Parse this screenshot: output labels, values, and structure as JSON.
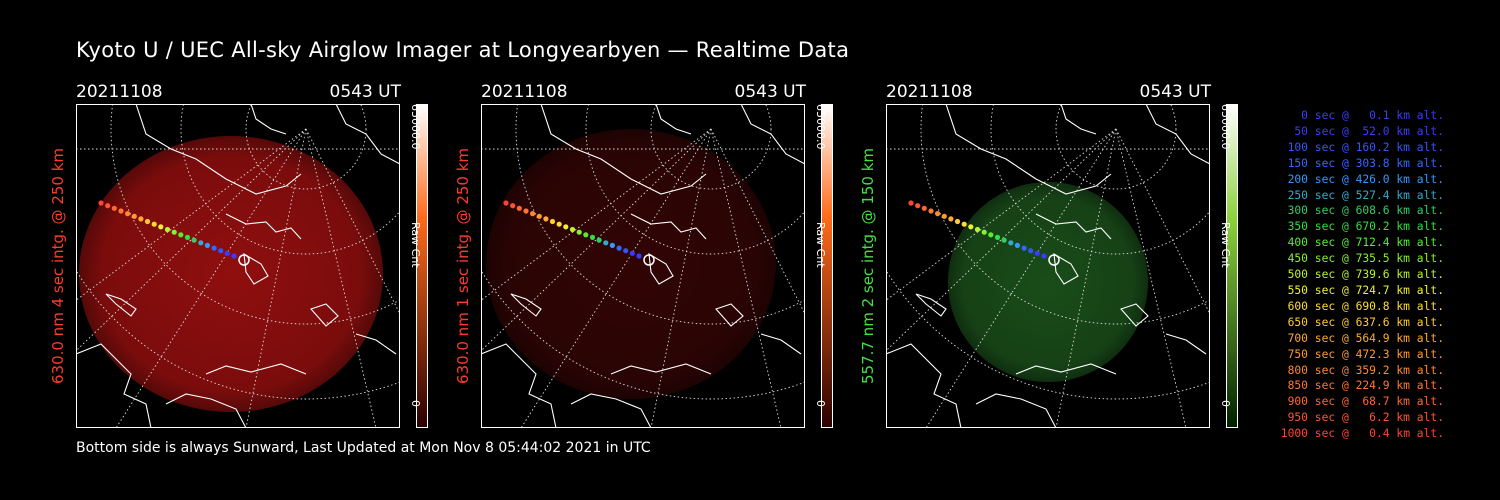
{
  "title": "Kyoto U / UEC All-sky Airglow Imager at Longyearbyen — Realtime Data",
  "footer": "Bottom side is always Sunward, Last Updated at Mon Nov  8 05:44:02 2021 in UTC",
  "panels": [
    {
      "date": "20211108",
      "time": "0543 UT",
      "side_label": "630.0 nm 4 sec intg. @ 250 km",
      "label_color": "#ff3b2a",
      "cbar_max": "65000.0",
      "cbar_unit": "Raw Cnt",
      "cbar_min": "0",
      "glow_color": "#a01010",
      "glow_level": 0.9,
      "bar_colors": [
        "#ffffff",
        "#ff6a1a",
        "#2a0000"
      ]
    },
    {
      "date": "20211108",
      "time": "0543 UT",
      "side_label": "630.0 nm 1 sec intg. @ 250 km",
      "label_color": "#ff3b2a",
      "cbar_max": "65000.0",
      "cbar_unit": "Raw Cnt",
      "cbar_min": "0",
      "glow_color": "#5a0808",
      "glow_level": 0.55,
      "bar_colors": [
        "#ffffff",
        "#ff6a1a",
        "#2a0000"
      ]
    },
    {
      "date": "20211108",
      "time": "0543 UT",
      "side_label": "557.7 nm 2 sec intg. @ 150 km",
      "label_color": "#44e044",
      "cbar_max": "65000.0",
      "cbar_unit": "Raw Cnt",
      "cbar_min": "0",
      "glow_color": "#1e5a1e",
      "glow_level": 0.85,
      "bar_colors": [
        "#ffffff",
        "#8cd23c",
        "#002000"
      ]
    }
  ],
  "legend": [
    {
      "text": "0 sec @   0.1 km alt.",
      "color": "#3b3bff"
    },
    {
      "text": "50 sec @  52.0 km alt.",
      "color": "#3b3bff"
    },
    {
      "text": "100 sec @ 160.2 km alt.",
      "color": "#3355ff"
    },
    {
      "text": "150 sec @ 303.8 km alt.",
      "color": "#3366ff"
    },
    {
      "text": "200 sec @ 426.0 km alt.",
      "color": "#3399ff"
    },
    {
      "text": "250 sec @ 527.4 km alt.",
      "color": "#33aacc"
    },
    {
      "text": "300 sec @ 608.6 km alt.",
      "color": "#33cc66"
    },
    {
      "text": "350 sec @ 670.2 km alt.",
      "color": "#33dd44"
    },
    {
      "text": "400 sec @ 712.4 km alt.",
      "color": "#55ee33"
    },
    {
      "text": "450 sec @ 735.5 km alt.",
      "color": "#88f033"
    },
    {
      "text": "500 sec @ 739.6 km alt.",
      "color": "#bbf233"
    },
    {
      "text": "550 sec @ 724.7 km alt.",
      "color": "#eef033"
    },
    {
      "text": "600 sec @ 690.8 km alt.",
      "color": "#ffdd33"
    },
    {
      "text": "650 sec @ 637.6 km alt.",
      "color": "#ffcc33"
    },
    {
      "text": "700 sec @ 564.9 km alt.",
      "color": "#ffaa33"
    },
    {
      "text": "750 sec @ 472.3 km alt.",
      "color": "#ff9933"
    },
    {
      "text": "800 sec @ 359.2 km alt.",
      "color": "#ff8833"
    },
    {
      "text": "850 sec @ 224.9 km alt.",
      "color": "#ff7733"
    },
    {
      "text": "900 sec @  68.7 km alt.",
      "color": "#ff6633"
    },
    {
      "text": "950 sec @   6.2 km alt.",
      "color": "#ff5533"
    },
    {
      "text": "1000 sec @   0.4 km alt.",
      "color": "#ff4433"
    }
  ]
}
